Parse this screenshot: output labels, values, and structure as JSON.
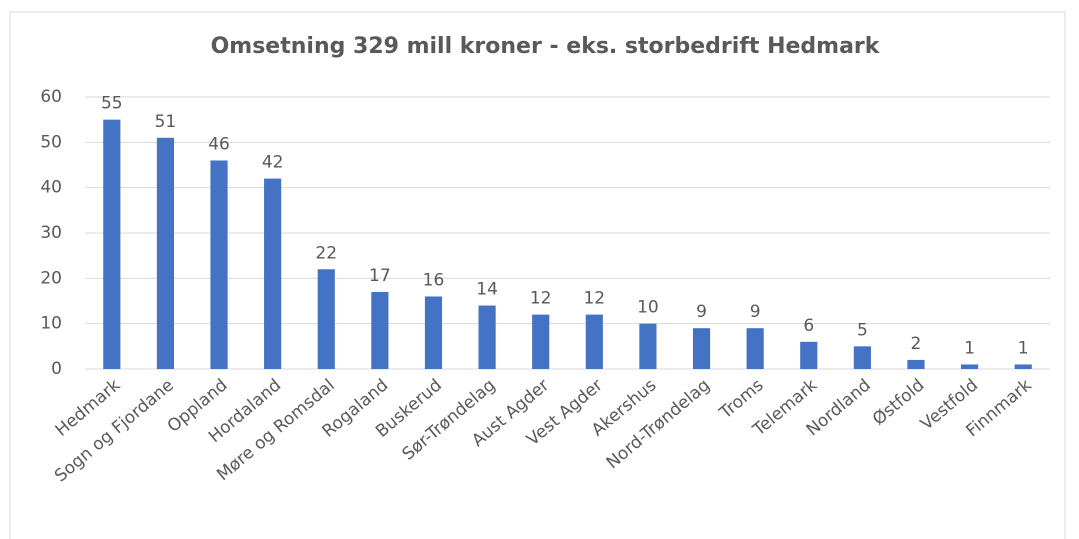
{
  "chart_data": {
    "type": "bar",
    "title": "Omsetning 329 mill kroner - eks. storbedrift Hedmark",
    "categories": [
      "Hedmark",
      "Sogn og Fjordane",
      "Oppland",
      "Hordaland",
      "Møre og Romsdal",
      "Rogaland",
      "Buskerud",
      "Sør-Trøndelag",
      "Aust Agder",
      "Vest Agder",
      "Akershus",
      "Nord-Trøndelag",
      "Troms",
      "Telemark",
      "Nordland",
      "Østfold",
      "Vestfold",
      "Finnmark"
    ],
    "values": [
      55,
      51,
      46,
      42,
      22,
      17,
      16,
      14,
      12,
      12,
      10,
      9,
      9,
      6,
      5,
      2,
      1,
      1
    ],
    "color": "#4472c4",
    "ylim": [
      0,
      60
    ],
    "yticks": [
      0,
      10,
      20,
      30,
      40,
      50,
      60
    ],
    "grid": true
  }
}
